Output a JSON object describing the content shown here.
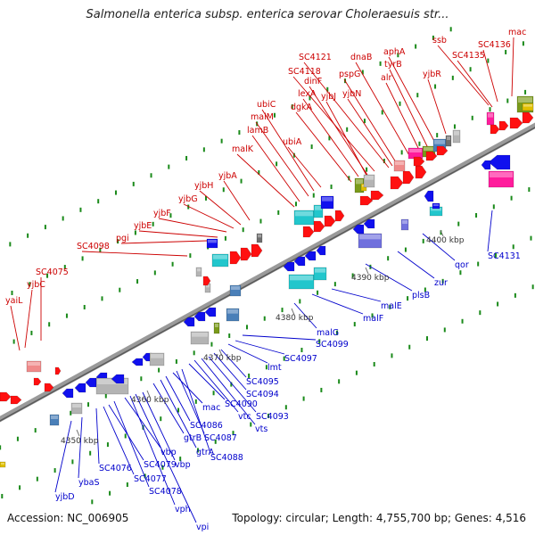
{
  "title": "Salmonella enterica subsp. enterica serovar Choleraesuis str...",
  "accession_line": "Accession: NC_006905",
  "stats_line": "Topology: circular; Length: 4,755,700 bp; Genes: 4,516",
  "colors": {
    "label_top": "#cc0000",
    "label_bottom": "#0000cc",
    "axis": "#888888",
    "red": "#ff1010",
    "blue": "#1010ee",
    "cyan": "#22c6cc",
    "steel": "#4a7fb8",
    "gray": "#b4b4b4",
    "dgray": "#6e6e6e",
    "green": "#1a8a1a",
    "olive": "#7a9a1a",
    "magenta": "#ff1c9c",
    "pink": "#f08a8a",
    "lavender": "#7070dd",
    "yellow": "#e0c000"
  },
  "ticks": [
    "4350 kbp",
    "4360 kbp",
    "4370 kbp",
    "4380 kbp",
    "4390 kbp",
    "4400 kbp"
  ],
  "genes_top": [
    "yaiL",
    "yjbC",
    "SC4075",
    "SC4098",
    "pgi",
    "yjbE",
    "yjbF",
    "yjbG",
    "yjbH",
    "yjbA",
    "malK",
    "lamB",
    "malM",
    "ubiC",
    "ubiA",
    "dgkA",
    "lexA",
    "dinF",
    "SC4118",
    "SC4121",
    "yjbJ",
    "pspG",
    "yjbN",
    "dnaB",
    "alr",
    "tyrB",
    "aphA",
    "yjbR",
    "SC4135",
    "ssb",
    "SC4136",
    "mac"
  ],
  "genes_bottom": [
    "yjbD",
    "ybaS",
    "SC4076",
    "SC4077",
    "SC4079",
    "SC4078",
    "vbp",
    "vph",
    "vpi",
    "vbp",
    "gtrB",
    "gtrA",
    "SC4086",
    "mac",
    "SC4087",
    "SC4088",
    "SC4090",
    "vtc",
    "vts",
    "SC4093",
    "SC4094",
    "SC4095",
    "lmt",
    "SC4097",
    "SC4099",
    "malG",
    "malF",
    "malE",
    "plsB",
    "zur",
    "qor",
    "SC4131"
  ]
}
